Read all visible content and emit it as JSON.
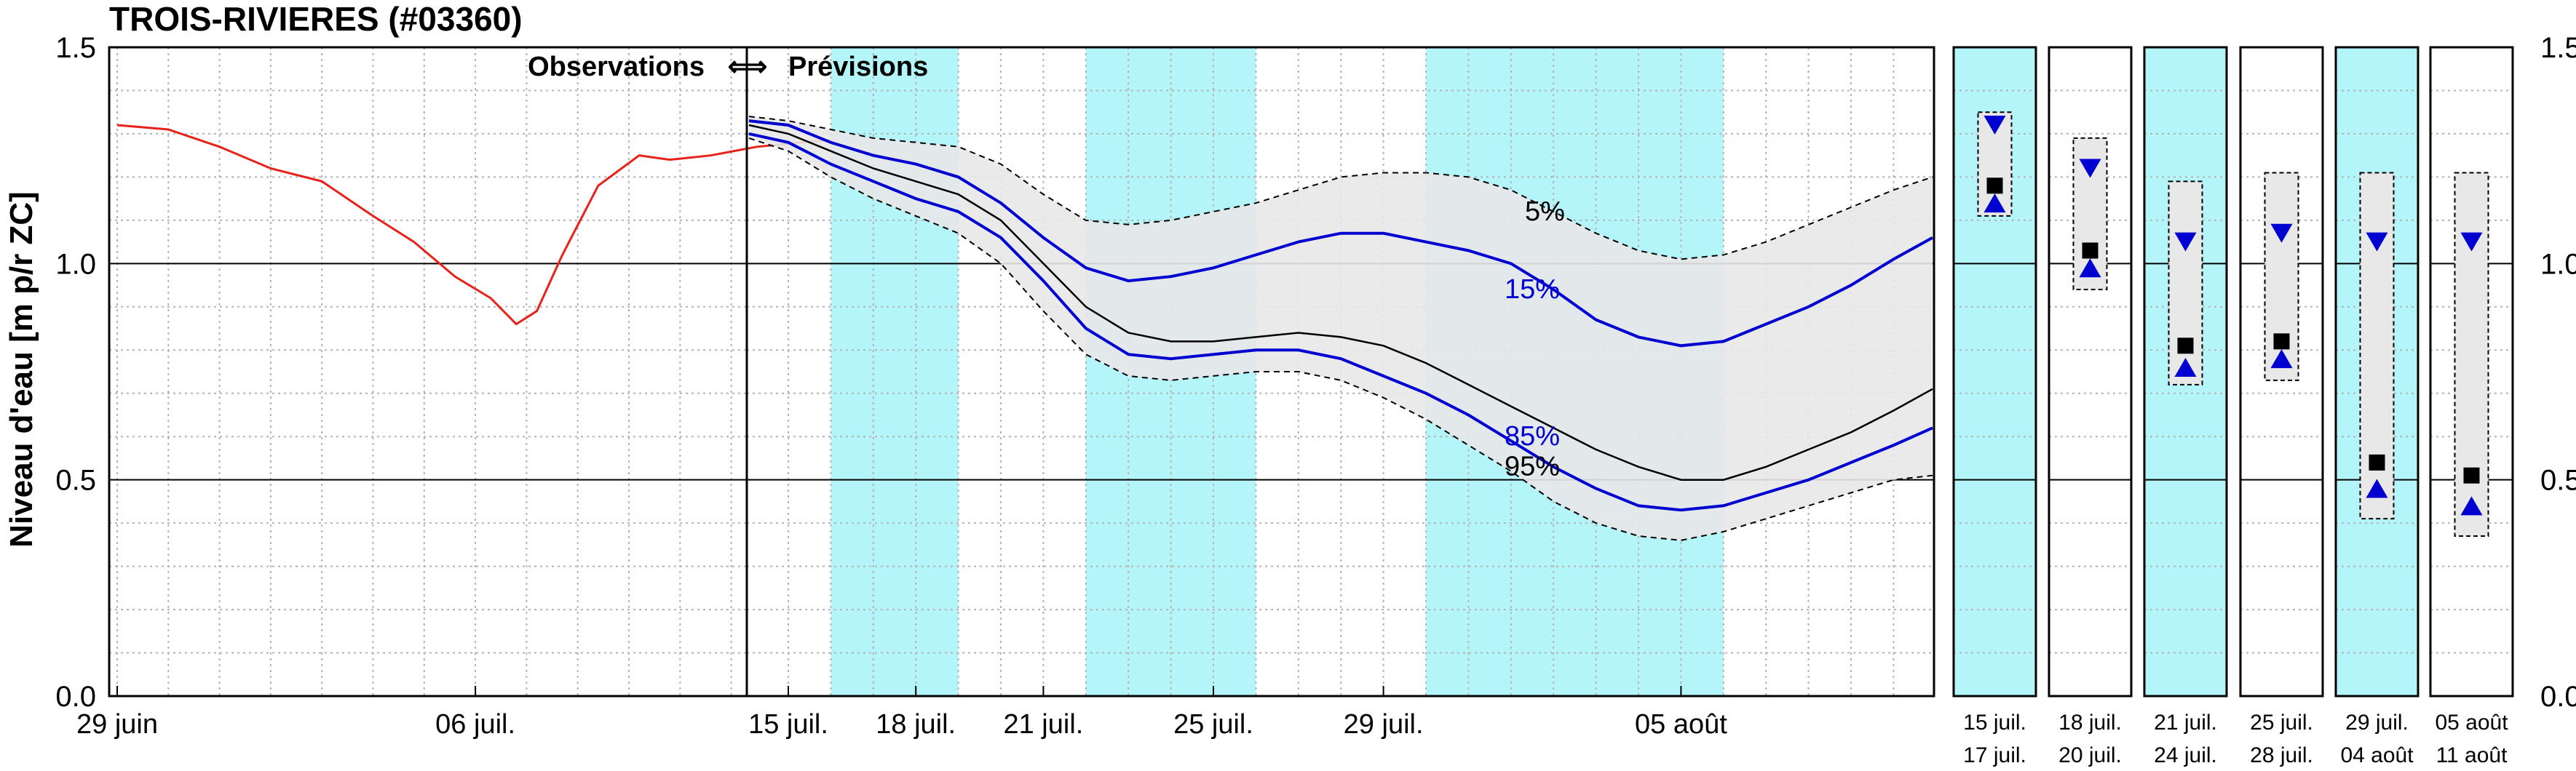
{
  "title": "TROIS-RIVIERES (#03360)",
  "ylabel": "Niveau d'eau [m p/r ZC]",
  "annotation": {
    "observations": "Observations",
    "arrow": "⟺",
    "previsions": "Prévisions"
  },
  "chart_data": {
    "type": "line",
    "ylim": [
      0.0,
      1.5
    ],
    "yticks": [
      "0.0",
      "0.5",
      "1.0",
      "1.5"
    ],
    "obs_xticks": [
      {
        "label": "29 juin",
        "day": 0
      },
      {
        "label": "06 juil.",
        "day": 7
      }
    ],
    "fc_xticks": [
      {
        "label": "15 juil.",
        "day": 0
      },
      {
        "label": "18 juil.",
        "day": 3
      },
      {
        "label": "21 juil.",
        "day": 6
      },
      {
        "label": "25 juil.",
        "day": 10
      },
      {
        "label": "29 juil.",
        "day": 14
      },
      {
        "label": "05 août",
        "day": 21
      }
    ],
    "observed": {
      "color": "#e8221b",
      "x": [
        0,
        1,
        2,
        3,
        4,
        5,
        5.8,
        6.6,
        7.3,
        7.8,
        8.2,
        8.7,
        9.4,
        10.2,
        10.8,
        11.6,
        12.5,
        13.4,
        14.3
      ],
      "y": [
        1.32,
        1.31,
        1.27,
        1.22,
        1.19,
        1.11,
        1.05,
        0.97,
        0.92,
        0.86,
        0.89,
        1.02,
        1.18,
        1.25,
        1.24,
        1.25,
        1.27,
        1.28,
        1.29
      ]
    },
    "forecast": {
      "x_start": "15 juil.",
      "x": [
        -1,
        0,
        1,
        2,
        3,
        4,
        5,
        6,
        7,
        8,
        9,
        10,
        11,
        12,
        13,
        14,
        15,
        16,
        17,
        18,
        19,
        20,
        21,
        22,
        23,
        24,
        25,
        26,
        27
      ],
      "band_upper": [
        1.34,
        1.33,
        1.31,
        1.29,
        1.28,
        1.27,
        1.23,
        1.16,
        1.1,
        1.09,
        1.1,
        1.12,
        1.14,
        1.17,
        1.2,
        1.21,
        1.21,
        1.2,
        1.17,
        1.12,
        1.07,
        1.03,
        1.01,
        1.02,
        1.05,
        1.09,
        1.13,
        1.17,
        1.2
      ],
      "p5": [
        1.33,
        1.32,
        1.28,
        1.25,
        1.23,
        1.2,
        1.14,
        1.06,
        0.99,
        0.96,
        0.97,
        0.99,
        1.02,
        1.05,
        1.07,
        1.07,
        1.05,
        1.03,
        1.0
      ],
      "p15": [
        1.33,
        1.32,
        1.28,
        1.25,
        1.23,
        1.2,
        1.14,
        1.06,
        0.99,
        0.96,
        0.97,
        0.99,
        1.02,
        1.05,
        1.07,
        1.07,
        1.05,
        1.03,
        1.0,
        0.94,
        0.87,
        0.83,
        0.81,
        0.82,
        0.86,
        0.9,
        0.95,
        1.01,
        1.06
      ],
      "p85": [
        1.3,
        1.28,
        1.23,
        1.19,
        1.15,
        1.12,
        1.06,
        0.96,
        0.85,
        0.79,
        0.78,
        0.79,
        0.8,
        0.8,
        0.78,
        0.74,
        0.7,
        0.65
      ],
      "p95_blue": [
        1.3,
        1.28,
        1.23,
        1.19,
        1.15,
        1.12,
        1.06,
        0.96,
        0.85,
        0.79,
        0.78,
        0.79,
        0.8,
        0.8,
        0.78,
        0.74,
        0.7,
        0.65,
        0.59,
        0.53,
        0.48,
        0.44,
        0.43,
        0.44,
        0.47,
        0.5,
        0.54,
        0.58,
        0.62
      ],
      "median": [
        1.32,
        1.3,
        1.26,
        1.22,
        1.19,
        1.16,
        1.1,
        1.0,
        0.9,
        0.84,
        0.82,
        0.82,
        0.83,
        0.84,
        0.83,
        0.81,
        0.77,
        0.72,
        0.67,
        0.62,
        0.57,
        0.53,
        0.5,
        0.5,
        0.53,
        0.57,
        0.61,
        0.66,
        0.71
      ],
      "band_lower": [
        1.29,
        1.26,
        1.2,
        1.15,
        1.11,
        1.07,
        1.0,
        0.89,
        0.79,
        0.74,
        0.73,
        0.74,
        0.75,
        0.75,
        0.73,
        0.69,
        0.64,
        0.58,
        0.52,
        0.45,
        0.4,
        0.37,
        0.36,
        0.38,
        0.41,
        0.44,
        0.47,
        0.5,
        0.51
      ],
      "labels": [
        {
          "text": "5%",
          "x": 17.8,
          "y": 1.1,
          "color": "#000000"
        },
        {
          "text": "15%",
          "x": 17.5,
          "y": 0.92,
          "color": "#0000d0"
        },
        {
          "text": "85%",
          "x": 17.5,
          "y": 0.58,
          "color": "#0000d0"
        },
        {
          "text": "95%",
          "x": 17.5,
          "y": 0.51,
          "color": "#000000"
        }
      ],
      "shaded_days": [
        [
          1,
          4
        ],
        [
          7,
          11
        ],
        [
          15,
          22
        ]
      ]
    },
    "summary_panels": [
      {
        "top": "15 juil.",
        "bottom": "17 juil.",
        "shaded": true,
        "box_top": 1.35,
        "box_bottom": 1.11,
        "max": 1.32,
        "median": 1.18,
        "min": 1.14
      },
      {
        "top": "18 juil.",
        "bottom": "20 juil.",
        "shaded": false,
        "box_top": 1.29,
        "box_bottom": 0.94,
        "max": 1.22,
        "median": 1.03,
        "min": 0.99
      },
      {
        "top": "21 juil.",
        "bottom": "24 juil.",
        "shaded": true,
        "box_top": 1.19,
        "box_bottom": 0.72,
        "max": 1.05,
        "median": 0.81,
        "min": 0.76
      },
      {
        "top": "25 juil.",
        "bottom": "28 juil.",
        "shaded": false,
        "box_top": 1.21,
        "box_bottom": 0.73,
        "max": 1.07,
        "median": 0.82,
        "min": 0.78
      },
      {
        "top": "29 juil.",
        "bottom": "04 août",
        "shaded": true,
        "box_top": 1.21,
        "box_bottom": 0.41,
        "max": 1.05,
        "median": 0.54,
        "min": 0.48
      },
      {
        "top": "05 août",
        "bottom": "11 août",
        "shaded": false,
        "box_top": 1.21,
        "box_bottom": 0.37,
        "max": 1.05,
        "median": 0.51,
        "min": 0.44
      }
    ],
    "colors": {
      "shade": "#b3f5f8",
      "band": "#e8e8e8",
      "forecast_line": "#0000d0",
      "median_line": "#000000",
      "grid": "#b4b4b4"
    }
  }
}
